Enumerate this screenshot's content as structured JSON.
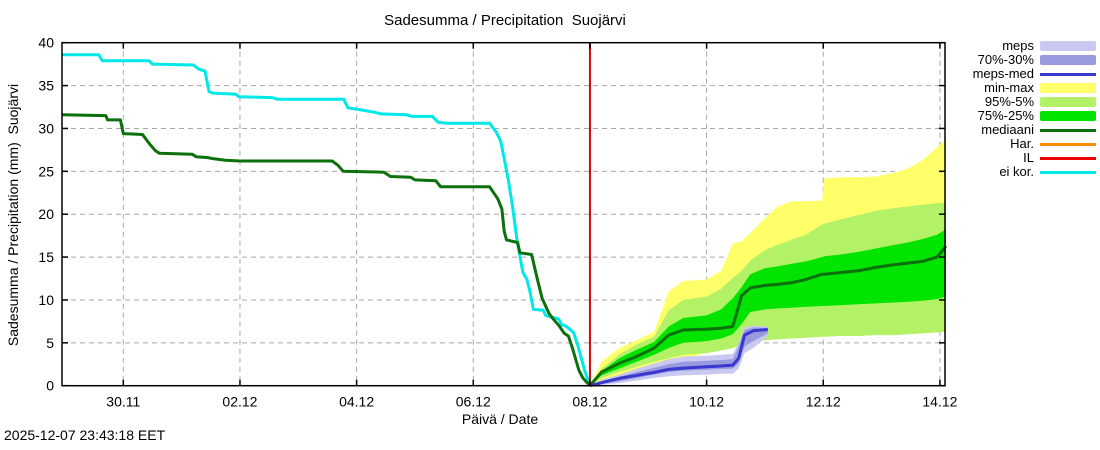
{
  "header": {
    "title": "Sadesumma / Precipitation  Suojärvi"
  },
  "footer": {
    "timestamp": "2025-12-07 23:43:18 EET"
  },
  "legend": {
    "items": [
      {
        "label": "meps",
        "type": "band",
        "color": "#c9c9f2"
      },
      {
        "label": "70%-30%",
        "type": "band",
        "color": "#9a9ade"
      },
      {
        "label": "meps-med",
        "type": "line",
        "color": "#3838cf"
      },
      {
        "label": "min-max",
        "type": "band",
        "color": "#ffff69"
      },
      {
        "label": "95%-5%",
        "type": "band",
        "color": "#b3f266"
      },
      {
        "label": "75%-25%",
        "type": "band",
        "color": "#00e400"
      },
      {
        "label": "mediaani",
        "type": "line",
        "color": "#0c700c"
      },
      {
        "label": "Har.",
        "type": "line",
        "color": "#ff8c00"
      },
      {
        "label": "IL",
        "type": "line",
        "color": "#ee0000"
      },
      {
        "label": "ei kor.",
        "type": "line",
        "color": "#00e8e8"
      }
    ]
  },
  "chart_data": {
    "type": "area",
    "title": "Sadesumma / Precipitation  Suojärvi",
    "xlabel": "Päivä / Date",
    "ylabel": "Sadesumma / Precipitation (mm)  Suojärvi",
    "x_unit": "days relative to 30.11",
    "xlim": [
      -1.046,
      14.103
    ],
    "ylim": [
      0,
      40
    ],
    "x_ticks": [
      0,
      2,
      4,
      6,
      8,
      10,
      12,
      14
    ],
    "x_ticklabels": [
      "30.11",
      "02.12",
      "04.12",
      "06.12",
      "08.12",
      "10.12",
      "12.12",
      "14.12"
    ],
    "y_ticks": [
      0,
      5,
      10,
      15,
      20,
      25,
      30,
      35,
      40
    ],
    "grid": true,
    "grid_color": "#a8a8a8",
    "axis_color": "#000000",
    "forecast_start_day": 8,
    "forecast_start_label": "08.12",
    "forecast_marker": {
      "color": "#dd0000",
      "day": 8
    },
    "history_series": [
      {
        "name": "ei kor.",
        "color": "#00e8e8",
        "width": 3,
        "points": [
          [
            -1.05,
            38.6
          ],
          [
            -0.42,
            38.6
          ],
          [
            -0.36,
            37.9
          ],
          [
            0.44,
            37.9
          ],
          [
            0.5,
            37.5
          ],
          [
            1.2,
            37.4
          ],
          [
            1.3,
            36.9
          ],
          [
            1.4,
            36.7
          ],
          [
            1.47,
            34.3
          ],
          [
            1.55,
            34.1
          ],
          [
            1.92,
            34.0
          ],
          [
            1.98,
            33.7
          ],
          [
            2.55,
            33.6
          ],
          [
            2.65,
            33.4
          ],
          [
            3.78,
            33.4
          ],
          [
            3.85,
            32.4
          ],
          [
            4.05,
            32.2
          ],
          [
            4.3,
            31.9
          ],
          [
            4.42,
            31.7
          ],
          [
            4.85,
            31.6
          ],
          [
            4.95,
            31.4
          ],
          [
            5.3,
            31.4
          ],
          [
            5.4,
            30.7
          ],
          [
            5.55,
            30.6
          ],
          [
            6.28,
            30.6
          ],
          [
            6.4,
            29.5
          ],
          [
            6.47,
            28.5
          ],
          [
            6.53,
            26.5
          ],
          [
            6.6,
            24.0
          ],
          [
            6.67,
            21.0
          ],
          [
            6.75,
            17.0
          ],
          [
            6.85,
            13.2
          ],
          [
            6.92,
            12.4
          ],
          [
            6.97,
            11.0
          ],
          [
            7.03,
            8.9
          ],
          [
            7.2,
            8.8
          ],
          [
            7.24,
            8.2
          ],
          [
            7.33,
            8.0
          ],
          [
            7.4,
            7.9
          ],
          [
            7.46,
            7.8
          ],
          [
            7.52,
            7.1
          ],
          [
            7.6,
            6.9
          ],
          [
            7.72,
            6.2
          ],
          [
            7.8,
            4.5
          ],
          [
            7.9,
            2.0
          ],
          [
            8.0,
            0.0
          ]
        ]
      },
      {
        "name": "mediaani",
        "color": "#0c700c",
        "width": 3,
        "points": [
          [
            -1.05,
            31.6
          ],
          [
            -0.3,
            31.5
          ],
          [
            -0.27,
            31.0
          ],
          [
            -0.05,
            31.0
          ],
          [
            0.0,
            29.4
          ],
          [
            0.33,
            29.3
          ],
          [
            0.45,
            28.2
          ],
          [
            0.55,
            27.4
          ],
          [
            0.62,
            27.1
          ],
          [
            1.18,
            27.0
          ],
          [
            1.25,
            26.7
          ],
          [
            1.45,
            26.6
          ],
          [
            1.52,
            26.5
          ],
          [
            1.75,
            26.3
          ],
          [
            2.0,
            26.2
          ],
          [
            3.58,
            26.2
          ],
          [
            3.68,
            25.7
          ],
          [
            3.77,
            25.0
          ],
          [
            4.47,
            24.9
          ],
          [
            4.58,
            24.4
          ],
          [
            4.93,
            24.3
          ],
          [
            5.0,
            24.0
          ],
          [
            5.36,
            23.9
          ],
          [
            5.44,
            23.2
          ],
          [
            6.28,
            23.2
          ],
          [
            6.42,
            21.8
          ],
          [
            6.49,
            20.6
          ],
          [
            6.53,
            18.0
          ],
          [
            6.57,
            17.0
          ],
          [
            6.76,
            16.7
          ],
          [
            6.8,
            15.5
          ],
          [
            7.0,
            15.3
          ],
          [
            7.1,
            12.4
          ],
          [
            7.18,
            10.2
          ],
          [
            7.3,
            8.4
          ],
          [
            7.38,
            7.7
          ],
          [
            7.47,
            7.0
          ],
          [
            7.53,
            6.4
          ],
          [
            7.56,
            6.1
          ],
          [
            7.63,
            5.8
          ],
          [
            7.7,
            4.4
          ],
          [
            7.76,
            3.0
          ],
          [
            7.81,
            1.8
          ],
          [
            7.88,
            0.9
          ],
          [
            8.0,
            0.0
          ]
        ]
      }
    ],
    "forecast": {
      "days": [
        8.0,
        8.2,
        8.5,
        8.8,
        9.1,
        9.35,
        9.6,
        10.0,
        10.25,
        10.45,
        10.6,
        10.75,
        11.0,
        11.2,
        11.45,
        11.7,
        11.98,
        12.02,
        12.3,
        12.6,
        12.9,
        13.2,
        13.45,
        13.7,
        13.95,
        14.05,
        14.1
      ],
      "bands": [
        {
          "name": "min-max",
          "color": "#ffff69",
          "top": [
            0,
            2.8,
            4.4,
            5.3,
            6.3,
            11.0,
            12.2,
            12.4,
            13.4,
            16.6,
            16.8,
            17.8,
            19.5,
            20.8,
            21.5,
            21.5,
            21.6,
            24.2,
            24.3,
            24.3,
            24.4,
            24.8,
            25.3,
            26.3,
            27.8,
            28.4,
            28.7
          ],
          "bottom": [
            0,
            0.6,
            1.2,
            1.8,
            2.4,
            2.7,
            2.9,
            3.9,
            4.2,
            4.5,
            5.5,
            7.2,
            7.4,
            7.5,
            7.6,
            7.6,
            7.7,
            7.7,
            7.8,
            7.8,
            7.9,
            7.9,
            8.0,
            8.0,
            8.1,
            8.2,
            8.2
          ]
        },
        {
          "name": "95%-5%",
          "color": "#b3f266",
          "top": [
            0,
            2.0,
            3.6,
            4.8,
            5.7,
            8.8,
            10.0,
            10.4,
            11.3,
            12.6,
            13.4,
            14.6,
            15.8,
            16.4,
            17.0,
            17.6,
            18.8,
            18.9,
            19.4,
            19.9,
            20.4,
            20.7,
            20.9,
            21.1,
            21.3,
            21.3,
            21.4
          ],
          "bottom": [
            0,
            0.9,
            1.6,
            2.2,
            2.8,
            3.2,
            3.6,
            3.8,
            4.1,
            4.4,
            4.8,
            5.2,
            5.3,
            5.4,
            5.5,
            5.6,
            5.7,
            5.7,
            5.8,
            5.8,
            5.9,
            5.9,
            6.0,
            6.1,
            6.2,
            6.3,
            6.3
          ]
        },
        {
          "name": "75%-25%",
          "color": "#00e400",
          "top": [
            0,
            1.7,
            3.2,
            4.2,
            5.1,
            6.9,
            7.9,
            8.2,
            8.9,
            10.2,
            11.5,
            13.0,
            13.7,
            13.9,
            14.2,
            14.5,
            15.0,
            15.1,
            15.3,
            15.6,
            16.0,
            16.4,
            16.7,
            17.1,
            17.6,
            18.0,
            18.2
          ],
          "bottom": [
            0,
            1.2,
            2.0,
            2.8,
            3.6,
            4.4,
            5.0,
            5.2,
            5.5,
            6.0,
            7.2,
            8.6,
            8.9,
            9.0,
            9.1,
            9.2,
            9.3,
            9.3,
            9.4,
            9.5,
            9.6,
            9.7,
            9.8,
            9.9,
            10.1,
            10.3,
            10.4
          ]
        }
      ],
      "median": {
        "name": "mediaani",
        "color": "#0c700c",
        "width": 3,
        "values": [
          0,
          1.6,
          2.6,
          3.4,
          4.4,
          5.9,
          6.5,
          6.6,
          6.7,
          6.9,
          10.5,
          11.4,
          11.7,
          11.8,
          12.0,
          12.4,
          13.0,
          13.0,
          13.2,
          13.4,
          13.8,
          14.1,
          14.3,
          14.5,
          15.0,
          15.8,
          16.3
        ]
      },
      "meps": {
        "days": [
          8.0,
          8.2,
          8.5,
          8.8,
          9.1,
          9.35,
          9.6,
          10.0,
          10.25,
          10.45,
          10.55,
          10.65,
          10.8,
          11.05
        ],
        "bands": [
          {
            "name": "meps",
            "color": "#c9c9f2",
            "top": [
              0,
              0.7,
              1.3,
              2.0,
              2.6,
              3.1,
              3.4,
              3.5,
              3.6,
              3.7,
              5.0,
              6.8,
              7.0,
              6.9
            ],
            "bottom": [
              0,
              0.1,
              0.3,
              0.6,
              0.9,
              1.1,
              1.2,
              1.3,
              1.4,
              1.4,
              2.0,
              3.8,
              4.4,
              5.8
            ]
          },
          {
            "name": "70%-30%",
            "color": "#9a9ade",
            "top": [
              0,
              0.55,
              1.05,
              1.6,
              2.1,
              2.5,
              2.8,
              2.9,
              3.0,
              3.1,
              4.6,
              6.5,
              6.8,
              6.75
            ],
            "bottom": [
              0,
              0.2,
              0.5,
              0.9,
              1.3,
              1.6,
              1.75,
              1.85,
              1.95,
              2.0,
              2.6,
              4.6,
              5.2,
              6.1
            ]
          }
        ],
        "line": {
          "name": "meps-med",
          "color": "#3838cf",
          "width": 3,
          "values": [
            0,
            0.35,
            0.85,
            1.2,
            1.55,
            1.9,
            2.05,
            2.2,
            2.3,
            2.4,
            3.2,
            5.9,
            6.4,
            6.55
          ]
        }
      }
    }
  }
}
